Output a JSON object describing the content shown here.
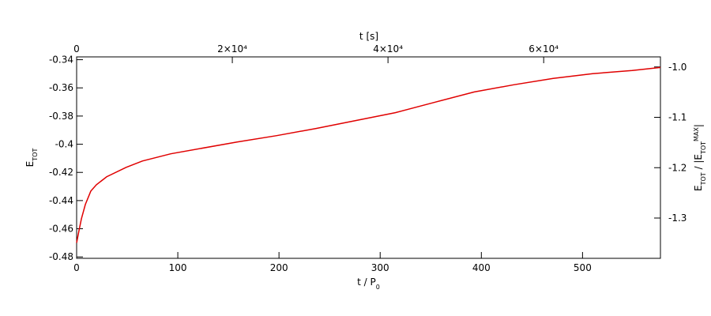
{
  "chart_data": {
    "type": "line",
    "xlabel": [
      {
        "text": "t / P"
      },
      {
        "text": "0",
        "shift": "sub"
      }
    ],
    "ylabel": [
      {
        "text": "E"
      },
      {
        "text": "TOT",
        "shift": "sub"
      }
    ],
    "y2label": [
      {
        "text": "E"
      },
      {
        "text": "TOT",
        "shift": "sub"
      },
      {
        "text": " / |E"
      },
      {
        "text": "TOT",
        "shift": "sub"
      },
      {
        "text": "MAX",
        "shift": "super"
      },
      {
        "text": "|"
      }
    ],
    "top_xlabel": "t [s]",
    "x": [
      0,
      2.3,
      4.7,
      8.6,
      14,
      19.5,
      29.7,
      49,
      65,
      93,
      158.6,
      197.7,
      236.7,
      275.8,
      315,
      354,
      393,
      432,
      471,
      510,
      549,
      577
    ],
    "series": [
      {
        "color": "#e00000",
        "values": [
          -0.47,
          -0.4614,
          -0.453,
          -0.4428,
          -0.4333,
          -0.4288,
          -0.4231,
          -0.4164,
          -0.4119,
          -0.4068,
          -0.3984,
          -0.3939,
          -0.3888,
          -0.3832,
          -0.3776,
          -0.3702,
          -0.3629,
          -0.3578,
          -0.3533,
          -0.3499,
          -0.3477,
          -0.3455
        ]
      }
    ],
    "xlim": [
      0,
      577
    ],
    "xticks": [
      0,
      100,
      200,
      300,
      400,
      500
    ],
    "ylim": [
      -0.481,
      -0.338
    ],
    "yticks": [
      -0.48,
      -0.46,
      -0.44,
      -0.42,
      -0.4,
      -0.38,
      -0.36,
      -0.34
    ],
    "y2lim": [
      -1.38,
      -0.98
    ],
    "y2ticks": [
      -1.3,
      -1.2,
      -1.1,
      {
        "value": -1,
        "label": "-1.0"
      }
    ],
    "top_xlim": [
      0,
      75000
    ],
    "top_xticks": [
      0,
      {
        "value": 20000,
        "label": "2×10⁴"
      },
      {
        "value": 40000,
        "label": "4×10⁴"
      },
      {
        "value": 60000,
        "label": "6×10⁴"
      }
    ]
  }
}
